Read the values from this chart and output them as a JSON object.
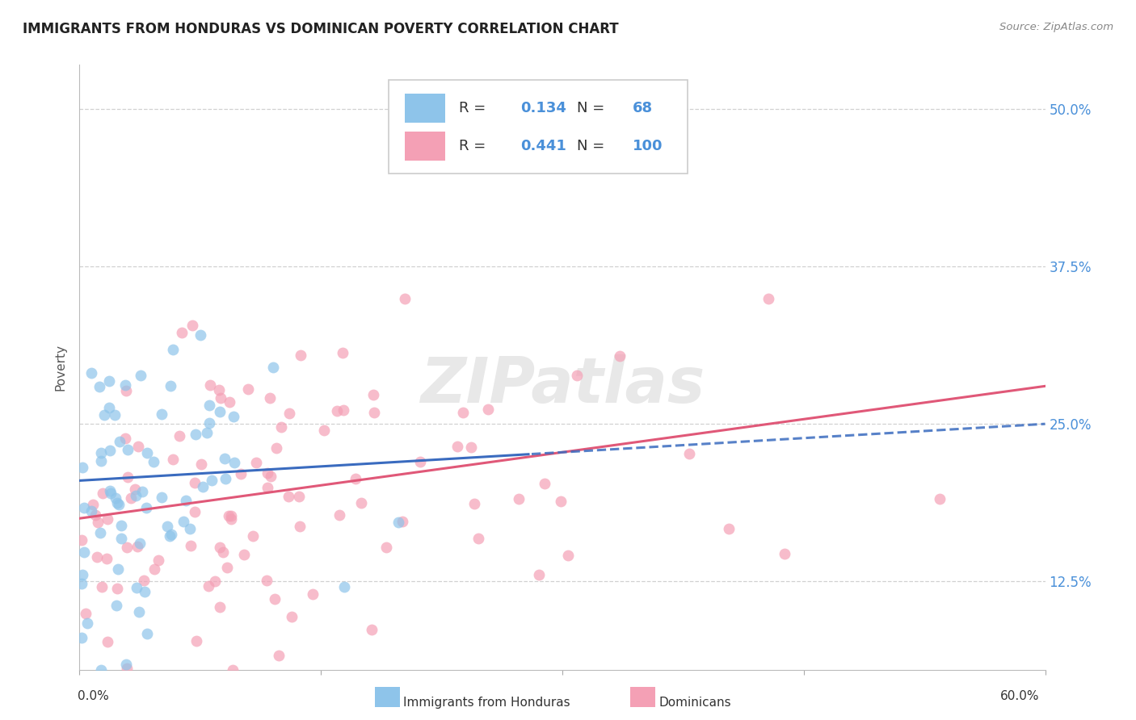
{
  "title": "IMMIGRANTS FROM HONDURAS VS DOMINICAN POVERTY CORRELATION CHART",
  "source": "Source: ZipAtlas.com",
  "ylabel": "Poverty",
  "ytick_labels": [
    "12.5%",
    "25.0%",
    "37.5%",
    "50.0%"
  ],
  "ytick_values": [
    0.125,
    0.25,
    0.375,
    0.5
  ],
  "xlim": [
    0.0,
    0.6
  ],
  "ylim": [
    0.055,
    0.535
  ],
  "legend_r1": "0.134",
  "legend_n1": "68",
  "legend_r2": "0.441",
  "legend_n2": "100",
  "color_honduras": "#8ec4ea",
  "color_dominican": "#f4a0b5",
  "line_color_honduras": "#3a6bbf",
  "line_color_dominican": "#e05878",
  "scatter_alpha": 0.7,
  "marker_size": 100,
  "watermark": "ZIPatlas",
  "background_color": "#ffffff",
  "grid_color": "#cccccc",
  "legend_label1": "Immigrants from Honduras",
  "legend_label2": "Dominicans"
}
